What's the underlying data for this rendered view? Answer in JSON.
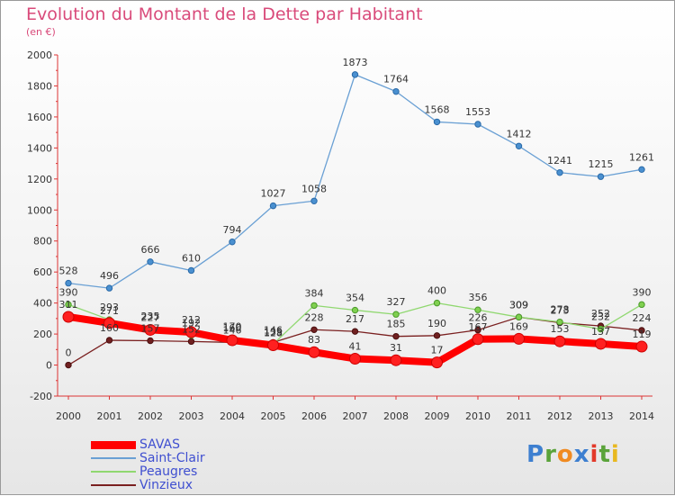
{
  "title": "Evolution du Montant de la Dette par Habitant",
  "subtitle": "(en €)",
  "logo_text": "Proxiti",
  "chart_data": {
    "type": "line",
    "title": "Evolution du Montant de la Dette par Habitant",
    "subtitle": "(en €)",
    "xlabel": "",
    "ylabel": "",
    "x": [
      "2000",
      "2001",
      "2002",
      "2003",
      "2004",
      "2005",
      "2006",
      "2007",
      "2008",
      "2009",
      "2010",
      "2011",
      "2012",
      "2013",
      "2014"
    ],
    "ylim": [
      -200,
      2000
    ],
    "yticks": [
      -200,
      0,
      200,
      400,
      600,
      800,
      1000,
      1200,
      1400,
      1600,
      1800,
      2000
    ],
    "grid": false,
    "legend_position": "bottom-left",
    "series": [
      {
        "name": "SAVAS",
        "color": "#ff0000",
        "values": [
          311,
          271,
          227,
          212,
          160,
          128,
          83,
          41,
          31,
          17,
          167,
          169,
          153,
          137,
          119
        ]
      },
      {
        "name": "Saint-Clair",
        "color": "#6aa0d4",
        "values": [
          528,
          496,
          666,
          610,
          794,
          1027,
          1058,
          1873,
          1764,
          1568,
          1553,
          1412,
          1241,
          1215,
          1261
        ]
      },
      {
        "name": "Peaugres",
        "color": "#90d870",
        "values": [
          390,
          293,
          235,
          192,
          170,
          135,
          384,
          354,
          327,
          400,
          356,
          309,
          278,
          232,
          390
        ]
      },
      {
        "name": "Vinzieux",
        "color": "#7a2020",
        "values": [
          0,
          160,
          157,
          152,
          146,
          146,
          228,
          217,
          185,
          190,
          226,
          309,
          273,
          252,
          224
        ]
      }
    ]
  }
}
